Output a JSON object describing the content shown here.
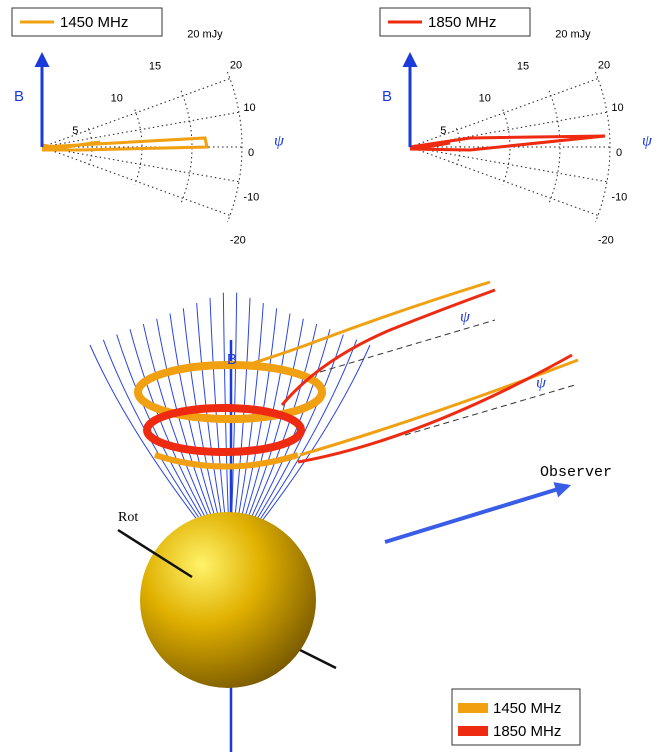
{
  "polar_plots": [
    {
      "legend": "1450 MHz",
      "b_label": "B",
      "radial_labels": [
        "5",
        "10",
        "15",
        "20 mJy"
      ],
      "angle_labels": [
        "20",
        "10",
        "0",
        "-10",
        "-20"
      ],
      "psi_label": "ψ"
    },
    {
      "legend": "1850 MHz",
      "b_label": "B",
      "radial_labels": [
        "5",
        "10",
        "15",
        "20 mJy"
      ],
      "angle_labels": [
        "20",
        "10",
        "0",
        "-10",
        "-20"
      ],
      "psi_label": "ψ"
    }
  ],
  "scene": {
    "b_label": "B",
    "psi_labels": [
      "ψ",
      "ψ"
    ],
    "observer_label": "Observer",
    "rot_label": "Rot",
    "legend": [
      "1450 MHz",
      "1850 MHz"
    ]
  }
}
